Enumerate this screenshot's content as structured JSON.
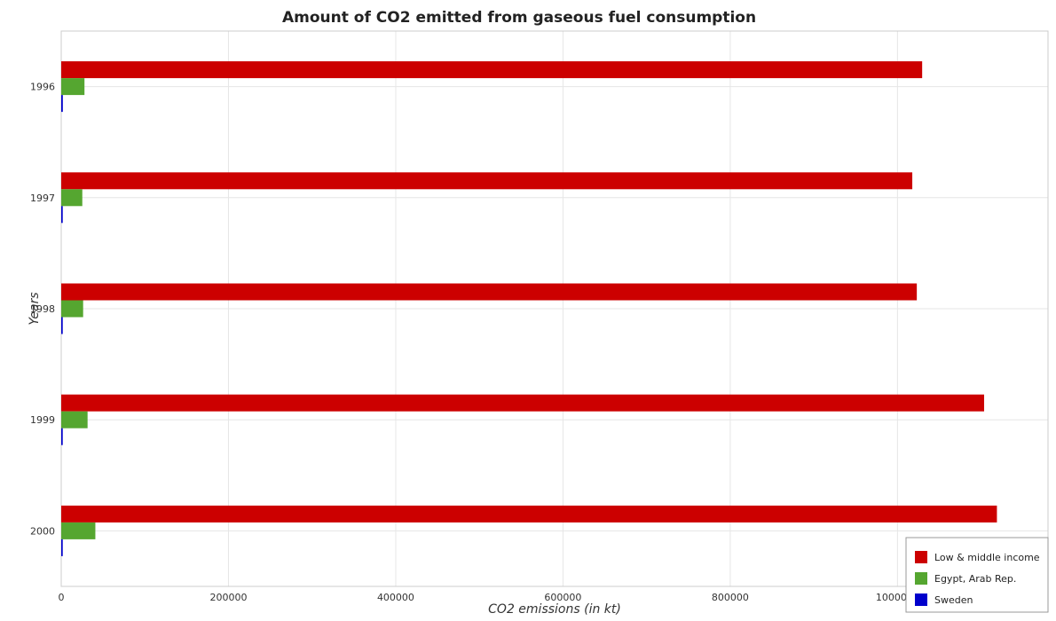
{
  "chart_data": {
    "type": "bar",
    "orientation": "horizontal",
    "title": "Amount of CO2 emitted from gaseous fuel consumption",
    "xlabel": "CO2 emissions (in kt)",
    "ylabel": "Years",
    "categories": [
      "1996",
      "1997",
      "1998",
      "1999",
      "2000"
    ],
    "xlim": [
      0,
      1180000
    ],
    "xticks": [
      0,
      200000,
      400000,
      600000,
      800000,
      1000000
    ],
    "xtick_labels": [
      "0",
      "200000",
      "400000",
      "600000",
      "800000",
      "1000000"
    ],
    "grid": true,
    "legend_position": "bottom-right",
    "series": [
      {
        "name": "Low & middle income",
        "color": "#cc0000",
        "values": [
          1029500,
          1017700,
          1023100,
          1103600,
          1118900
        ]
      },
      {
        "name": "Egypt, Arab Rep.",
        "color": "#55a630",
        "values": [
          27800,
          25200,
          26200,
          31500,
          40800
        ]
      },
      {
        "name": "Sweden",
        "color": "#0000cc",
        "values": [
          1900,
          1800,
          1800,
          1800,
          1800
        ]
      }
    ]
  }
}
